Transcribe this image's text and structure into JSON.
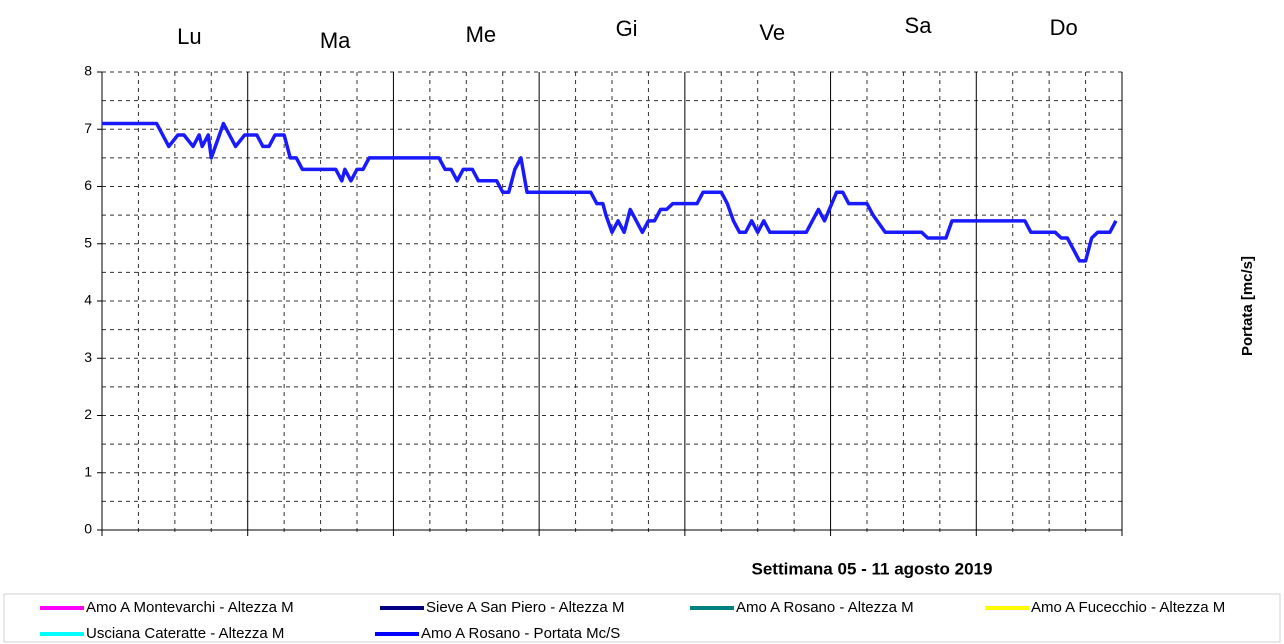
{
  "chart_data": {
    "type": "line",
    "categories": [
      "Lu",
      "Ma",
      "Me",
      "Gi",
      "Ve",
      "Sa",
      "Do"
    ],
    "xlabel": "Settimana 05 - 11  agosto 2019",
    "ylabel": "Portata [mc/s]",
    "xlim": [
      0,
      168
    ],
    "xticks": [
      0,
      6,
      12,
      18,
      24,
      30,
      36,
      42,
      48,
      54,
      60,
      66,
      72,
      78,
      84,
      90,
      96,
      102,
      108,
      114,
      120,
      126,
      132,
      138,
      144,
      150,
      156,
      162,
      168
    ],
    "x_major_ticks": [
      0,
      24,
      48,
      72,
      96,
      120,
      144,
      168
    ],
    "ylim": [
      0,
      8
    ],
    "yticks": [
      0,
      1,
      2,
      3,
      4,
      5,
      6,
      7,
      8
    ],
    "y_minor_ticks": [
      0.5,
      1.5,
      2.5,
      3.5,
      4.5,
      5.5,
      6.5,
      7.5
    ],
    "grid": true,
    "series": [
      {
        "name": "Amo A Rosano - Portata Mc/S",
        "color": "#1a1aff",
        "x": [
          0,
          9,
          11,
          12.5,
          13.5,
          15,
          16,
          16.5,
          17.5,
          18,
          20,
          22,
          23.5,
          25.5,
          26.5,
          27.5,
          28.5,
          30,
          31,
          32,
          33,
          38.5,
          39.5,
          40,
          41,
          42,
          43,
          44,
          55.5,
          56.5,
          57.5,
          58.5,
          59.5,
          61,
          62,
          65,
          66,
          67,
          68,
          69,
          70,
          80.5,
          81.5,
          82.5,
          83,
          84,
          85,
          86,
          87,
          88,
          89,
          90,
          91,
          92,
          93,
          94,
          98,
          99,
          102,
          103,
          104,
          105,
          106,
          107,
          108,
          109,
          110,
          116,
          117,
          118,
          119,
          121,
          122,
          123,
          126,
          127,
          129,
          135,
          136,
          139,
          140,
          152,
          153,
          157,
          158,
          159,
          160,
          161,
          162,
          163,
          164,
          166,
          167
        ],
        "values": [
          7.1,
          7.1,
          6.7,
          6.9,
          6.9,
          6.7,
          6.9,
          6.7,
          6.9,
          6.5,
          7.1,
          6.7,
          6.9,
          6.9,
          6.7,
          6.7,
          6.9,
          6.9,
          6.5,
          6.5,
          6.3,
          6.3,
          6.1,
          6.3,
          6.1,
          6.3,
          6.3,
          6.5,
          6.5,
          6.3,
          6.3,
          6.1,
          6.3,
          6.3,
          6.1,
          6.1,
          5.9,
          5.9,
          6.3,
          6.5,
          5.9,
          5.9,
          5.7,
          5.7,
          5.5,
          5.2,
          5.4,
          5.2,
          5.6,
          5.4,
          5.2,
          5.4,
          5.4,
          5.6,
          5.6,
          5.7,
          5.7,
          5.9,
          5.9,
          5.7,
          5.4,
          5.2,
          5.2,
          5.4,
          5.2,
          5.4,
          5.2,
          5.2,
          5.4,
          5.6,
          5.4,
          5.9,
          5.9,
          5.7,
          5.7,
          5.5,
          5.2,
          5.2,
          5.1,
          5.1,
          5.4,
          5.4,
          5.2,
          5.2,
          5.1,
          5.1,
          4.9,
          4.7,
          4.7,
          5.1,
          5.2,
          5.2,
          5.4
        ]
      }
    ],
    "legend": [
      {
        "name": "Amo A Montevarchi - Altezza M",
        "color": "#ff00ff"
      },
      {
        "name": "Sieve A San Piero - Altezza M",
        "color": "#000080"
      },
      {
        "name": "Amo A Rosano - Altezza M",
        "color": "#008080"
      },
      {
        "name": "Amo A Fucecchio - Altezza M",
        "color": "#ffff00"
      },
      {
        "name": "Usciana Cateratte - Altezza M",
        "color": "#00ffff"
      },
      {
        "name": "Amo A Rosano - Portata Mc/S",
        "color": "#0000ff"
      }
    ]
  }
}
